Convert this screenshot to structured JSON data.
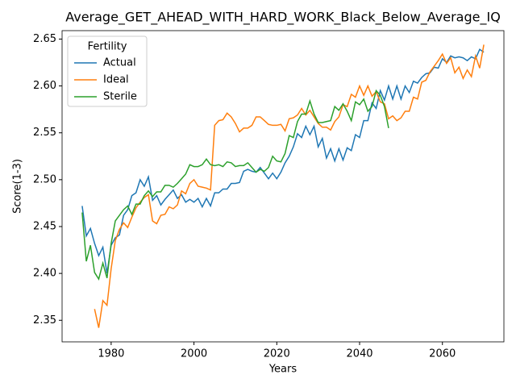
{
  "chart_data": {
    "type": "line",
    "title": "Average_GET_AHEAD_WITH_HARD_WORK_Black_Below_Average_IQ",
    "x_label": "Years",
    "y_label": "Score(1-3)",
    "legend_title": "Fertility",
    "legend": "upper left",
    "grid": false,
    "x": [
      1973,
      1974,
      1975,
      1976,
      1977,
      1978,
      1979,
      1980,
      1981,
      1982,
      1983,
      1984,
      1985,
      1986,
      1987,
      1988,
      1989,
      1990,
      1991,
      1992,
      1993,
      1994,
      1995,
      1996,
      1997,
      1998,
      1999,
      2000,
      2001,
      2002,
      2003,
      2004,
      2005,
      2006,
      2007,
      2008,
      2009,
      2010,
      2011,
      2012,
      2013,
      2014,
      2015,
      2016,
      2017,
      2018,
      2019,
      2020,
      2021,
      2022,
      2023,
      2024,
      2025,
      2026,
      2027,
      2028,
      2029,
      2030,
      2031,
      2032,
      2033,
      2034,
      2035,
      2036,
      2037,
      2038,
      2039,
      2040,
      2041,
      2042,
      2043,
      2044,
      2045,
      2046,
      2047,
      2048,
      2049,
      2050,
      2051,
      2052,
      2053,
      2054,
      2055,
      2056,
      2057,
      2058,
      2059,
      2060,
      2061,
      2062,
      2063,
      2064,
      2065,
      2066,
      2067,
      2068,
      2069,
      2070
    ],
    "series": [
      {
        "name": "Actual",
        "color": "#1f77b4",
        "values": [
          2.472,
          2.44,
          2.448,
          2.432,
          2.419,
          2.428,
          2.4,
          2.43,
          2.438,
          2.441,
          2.462,
          2.468,
          2.483,
          2.486,
          2.5,
          2.493,
          2.503,
          2.478,
          2.483,
          2.473,
          2.479,
          2.484,
          2.489,
          2.48,
          2.484,
          2.476,
          2.479,
          2.476,
          2.48,
          2.471,
          2.48,
          2.472,
          2.486,
          2.486,
          2.49,
          2.49,
          2.496,
          2.496,
          2.497,
          2.509,
          2.511,
          2.509,
          2.508,
          2.513,
          2.507,
          2.501,
          2.507,
          2.501,
          2.508,
          2.518,
          2.525,
          2.535,
          2.549,
          2.545,
          2.557,
          2.548,
          2.557,
          2.535,
          2.544,
          2.523,
          2.533,
          2.52,
          2.533,
          2.521,
          2.534,
          2.531,
          2.548,
          2.545,
          2.563,
          2.563,
          2.582,
          2.576,
          2.595,
          2.585,
          2.6,
          2.586,
          2.6,
          2.586,
          2.6,
          2.593,
          2.605,
          2.603,
          2.609,
          2.613,
          2.614,
          2.62,
          2.619,
          2.629,
          2.625,
          2.632,
          2.63,
          2.631,
          2.63,
          2.627,
          2.631,
          2.629,
          2.639,
          2.636
        ]
      },
      {
        "name": "Ideal",
        "color": "#ff7f0e",
        "values": [
          null,
          null,
          null,
          2.362,
          2.342,
          2.371,
          2.366,
          2.405,
          2.435,
          2.447,
          2.454,
          2.449,
          2.46,
          2.47,
          2.476,
          2.481,
          2.484,
          2.456,
          2.453,
          2.462,
          2.463,
          2.471,
          2.469,
          2.473,
          2.488,
          2.485,
          2.496,
          2.5,
          2.493,
          2.492,
          2.491,
          2.489,
          2.558,
          2.563,
          2.564,
          2.571,
          2.567,
          2.56,
          2.551,
          2.555,
          2.555,
          2.558,
          2.567,
          2.567,
          2.563,
          2.559,
          2.558,
          2.558,
          2.559,
          2.552,
          2.565,
          2.566,
          2.569,
          2.576,
          2.569,
          2.574,
          2.567,
          2.56,
          2.556,
          2.556,
          2.553,
          2.562,
          2.567,
          2.58,
          2.578,
          2.591,
          2.588,
          2.6,
          2.59,
          2.6,
          2.589,
          2.594,
          2.583,
          2.581,
          2.565,
          2.568,
          2.563,
          2.566,
          2.573,
          2.573,
          2.588,
          2.586,
          2.604,
          2.606,
          2.615,
          2.621,
          2.627,
          2.634,
          2.624,
          2.63,
          2.614,
          2.62,
          2.608,
          2.617,
          2.61,
          2.632,
          2.619,
          2.644
        ]
      },
      {
        "name": "Sterile",
        "color": "#2ca02c",
        "values": [
          2.465,
          2.413,
          2.43,
          2.401,
          2.394,
          2.411,
          2.395,
          2.432,
          2.456,
          2.462,
          2.468,
          2.472,
          2.463,
          2.474,
          2.474,
          2.483,
          2.488,
          2.482,
          2.487,
          2.487,
          2.494,
          2.494,
          2.492,
          2.496,
          2.501,
          2.506,
          2.516,
          2.514,
          2.514,
          2.516,
          2.522,
          2.516,
          2.515,
          2.516,
          2.514,
          2.519,
          2.518,
          2.514,
          2.515,
          2.515,
          2.518,
          2.513,
          2.508,
          2.511,
          2.509,
          2.513,
          2.525,
          2.52,
          2.519,
          2.528,
          2.547,
          2.545,
          2.562,
          2.57,
          2.57,
          2.584,
          2.57,
          2.561,
          2.561,
          2.562,
          2.563,
          2.578,
          2.574,
          2.581,
          2.573,
          2.563,
          2.583,
          2.58,
          2.586,
          2.573,
          2.578,
          2.595,
          2.59,
          2.578,
          2.555,
          null,
          null,
          null,
          null,
          null,
          null,
          null,
          null,
          null,
          null,
          null,
          null,
          null,
          null,
          null,
          null,
          null,
          null,
          null,
          null,
          null,
          null,
          null
        ]
      }
    ],
    "xlim": [
      1968.15,
      2074.85
    ],
    "ylim": [
      2.327,
      2.659
    ],
    "xticks": [
      1980,
      2000,
      2020,
      2040,
      2060
    ],
    "yticks": [
      2.35,
      {
        "value": 2.4,
        "label": "2.40"
      },
      2.45,
      {
        "value": 2.5,
        "label": "2.50"
      },
      2.55,
      {
        "value": 2.6,
        "label": "2.60"
      },
      2.65
    ]
  }
}
